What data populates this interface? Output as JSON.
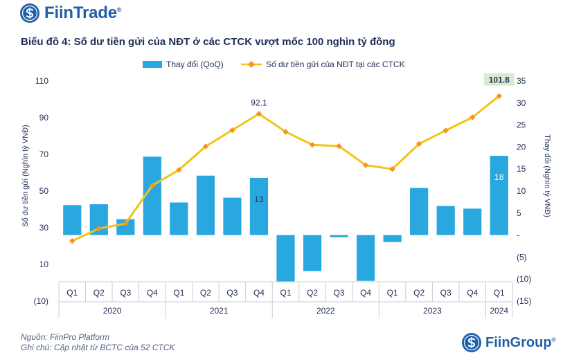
{
  "brand": {
    "name": "FiinTrade",
    "reg": "®",
    "footer_name": "FiinGroup"
  },
  "colors": {
    "bar": "#29a8e0",
    "line": "#f2c318",
    "marker": "#f7941d",
    "text": "#1f2d55",
    "label_bg": "#d9ead3"
  },
  "footer": {
    "source": "Nguồn: FiinPro Platform",
    "note": "Ghi chú: Cập nhật từ BCTC của 52 CTCK"
  },
  "chart_data": {
    "type": "bar+line",
    "title": "Biểu đồ 4: Số dư tiền gửi của NĐT ở các CTCK vượt mốc 100 nghìn tỷ đồng",
    "categories": [
      "Q1",
      "Q2",
      "Q3",
      "Q4",
      "Q1",
      "Q2",
      "Q3",
      "Q4",
      "Q1",
      "Q2",
      "Q3",
      "Q4",
      "Q1",
      "Q2",
      "Q3",
      "Q4",
      "Q1"
    ],
    "years": [
      {
        "label": "2020",
        "start": 0,
        "end": 3
      },
      {
        "label": "2021",
        "start": 4,
        "end": 7
      },
      {
        "label": "2022",
        "start": 8,
        "end": 11
      },
      {
        "label": "2023",
        "start": 12,
        "end": 15
      },
      {
        "label": "2024",
        "start": 16,
        "end": 16
      }
    ],
    "series": [
      {
        "name": "Thay đổi (QoQ)",
        "type": "bar",
        "axis": "right",
        "values": [
          6.8,
          7.0,
          3.6,
          17.8,
          7.4,
          13.5,
          8.5,
          13,
          -10.6,
          -8.2,
          -0.5,
          -10.4,
          -1.6,
          10.7,
          6.6,
          6.0,
          18
        ]
      },
      {
        "name": "Số dư tiền gửi của NĐT tại các CTCK",
        "type": "line",
        "axis": "left",
        "values": [
          22.8,
          29.5,
          32.3,
          53.0,
          61.5,
          74.3,
          83.2,
          92.1,
          82.3,
          75.2,
          74.5,
          64.1,
          62.0,
          75.7,
          83.0,
          90.2,
          101.8
        ]
      }
    ],
    "annotations": [
      {
        "series": 1,
        "index": 7,
        "text": "92.1"
      },
      {
        "series": 1,
        "index": 16,
        "text": "101.8"
      },
      {
        "series": 0,
        "index": 7,
        "text": "13"
      },
      {
        "series": 0,
        "index": 16,
        "text": "18"
      }
    ],
    "left_axis": {
      "label": "Số dư tiền gửi (Nghìn tỷ VNĐ)",
      "min": -10,
      "max": 110,
      "ticks": [
        110,
        90,
        70,
        50,
        30,
        10,
        -10
      ],
      "tick_labels": [
        "110",
        "90",
        "70",
        "50",
        "30",
        "10",
        "(10)"
      ]
    },
    "right_axis": {
      "label": "Thay đổi (Nghìn tỷ VNĐ)",
      "min": -15,
      "max": 35,
      "ticks": [
        35,
        30,
        25,
        20,
        15,
        10,
        5,
        0,
        -5,
        -10,
        -15
      ],
      "tick_labels": [
        "35",
        "30",
        "25",
        "20",
        "15",
        "10",
        "5",
        "-",
        "(5)",
        "(10)",
        "(15)"
      ]
    }
  }
}
